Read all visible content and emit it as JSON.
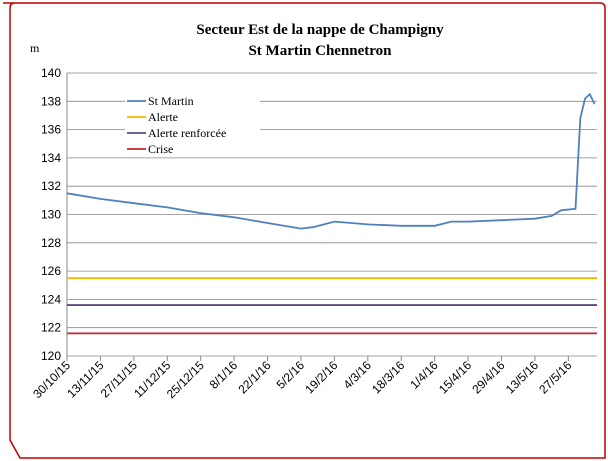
{
  "chart_data": {
    "type": "line",
    "title": "Secteur Est de la nappe de Champigny",
    "subtitle": "St Martin Chennetron",
    "y_label": "m",
    "ylim": [
      120,
      140
    ],
    "yticks": [
      120,
      122,
      124,
      126,
      128,
      130,
      132,
      134,
      136,
      138,
      140
    ],
    "xlim": [
      "30/10/15",
      "8/6/16"
    ],
    "xticks": [
      "30/10/15",
      "13/11/15",
      "27/11/15",
      "11/12/15",
      "25/12/15",
      "8/1/16",
      "22/1/16",
      "5/2/16",
      "19/2/16",
      "4/3/16",
      "18/3/16",
      "1/4/16",
      "15/4/16",
      "29/4/16",
      "13/5/16",
      "27/5/16"
    ],
    "grid": true,
    "x": [
      "30/10/15",
      "13/11/15",
      "27/11/15",
      "11/12/15",
      "25/12/15",
      "8/1/16",
      "22/1/16",
      "5/2/16",
      "10/2/16",
      "19/2/16",
      "4/3/16",
      "18/3/16",
      "1/4/16",
      "8/4/16",
      "15/4/16",
      "29/4/16",
      "13/5/16",
      "20/5/16",
      "24/5/16",
      "30/5/16",
      "1/6/16",
      "3/6/16",
      "5/6/16",
      "7/6/16"
    ],
    "series": [
      {
        "name": "St Martin",
        "color": "#4f81bd",
        "values": [
          131.5,
          131.1,
          130.8,
          130.5,
          130.1,
          129.8,
          129.4,
          129.0,
          129.1,
          129.5,
          129.3,
          129.2,
          129.2,
          129.5,
          129.5,
          129.6,
          129.7,
          129.9,
          130.3,
          130.4,
          136.8,
          138.2,
          138.5,
          137.8
        ]
      }
    ],
    "thresholds": [
      {
        "name": "Alerte",
        "color": "#f5b800",
        "value": 125.5
      },
      {
        "name": "Alerte renforcée",
        "color": "#5e4b7d",
        "value": 123.6
      },
      {
        "name": "Crise",
        "color": "#c0272d",
        "value": 121.6
      }
    ]
  }
}
